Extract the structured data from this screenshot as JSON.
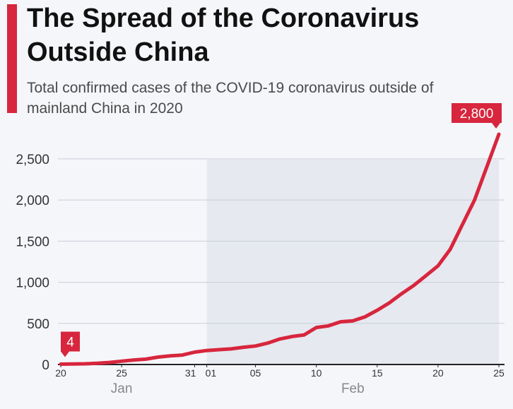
{
  "title": "The Spread of the Coronavirus Outside China",
  "subtitle": "Total confirmed cases of the COVID-19 coronavirus outside of mainland China in 2020",
  "colors": {
    "accent": "#d7263d",
    "line": "#d7263d",
    "grid": "#c9cdd6",
    "shade": "#e6e9f0",
    "axis_text": "#333333",
    "month_text": "#888888"
  },
  "chart_data": {
    "type": "line",
    "title": "The Spread of the Coronavirus Outside China",
    "subtitle": "Total confirmed cases of the COVID-19 coronavirus outside of mainland China in 2020",
    "xlabel": "",
    "ylabel": "",
    "ylim": [
      0,
      2800
    ],
    "yticks": [
      0,
      500,
      1000,
      1500,
      2000,
      2500
    ],
    "ytick_labels": [
      "0",
      "500",
      "1,000",
      "1,500",
      "2,000",
      "2,500"
    ],
    "xticks": [
      {
        "date": "2020-01-20",
        "label": "20"
      },
      {
        "date": "2020-01-25",
        "label": "25"
      },
      {
        "date": "2020-01-31",
        "label": "31"
      },
      {
        "date": "2020-02-01",
        "label": "01"
      },
      {
        "date": "2020-02-05",
        "label": "05"
      },
      {
        "date": "2020-02-10",
        "label": "10"
      },
      {
        "date": "2020-02-15",
        "label": "15"
      },
      {
        "date": "2020-02-20",
        "label": "20"
      },
      {
        "date": "2020-02-25",
        "label": "25"
      }
    ],
    "months": [
      {
        "label": "Jan",
        "center_date": "2020-01-25"
      },
      {
        "label": "Feb",
        "center_date": "2020-02-13"
      }
    ],
    "shaded_range": [
      "2020-02-01",
      "2020-02-25"
    ],
    "grid": true,
    "series": [
      {
        "x": [
          "2020-01-20",
          "2020-01-21",
          "2020-01-22",
          "2020-01-23",
          "2020-01-24",
          "2020-01-25",
          "2020-01-26",
          "2020-01-27",
          "2020-01-28",
          "2020-01-29",
          "2020-01-30",
          "2020-01-31",
          "2020-02-01",
          "2020-02-02",
          "2020-02-03",
          "2020-02-04",
          "2020-02-05",
          "2020-02-06",
          "2020-02-07",
          "2020-02-08",
          "2020-02-09",
          "2020-02-10",
          "2020-02-11",
          "2020-02-12",
          "2020-02-13",
          "2020-02-14",
          "2020-02-15",
          "2020-02-16",
          "2020-02-17",
          "2020-02-18",
          "2020-02-19",
          "2020-02-20",
          "2020-02-21",
          "2020-02-22",
          "2020-02-23",
          "2020-02-24",
          "2020-02-25"
        ],
        "values": [
          4,
          6,
          9,
          15,
          25,
          40,
          55,
          65,
          90,
          105,
          115,
          150,
          170,
          180,
          190,
          210,
          225,
          260,
          310,
          340,
          360,
          450,
          470,
          520,
          530,
          580,
          660,
          750,
          860,
          960,
          1080,
          1200,
          1400,
          1700,
          2000,
          2400,
          2800
        ]
      }
    ],
    "annotations": [
      {
        "date": "2020-01-20",
        "value": 4,
        "label": "4"
      },
      {
        "date": "2020-02-25",
        "value": 2800,
        "label": "2,800"
      }
    ]
  }
}
